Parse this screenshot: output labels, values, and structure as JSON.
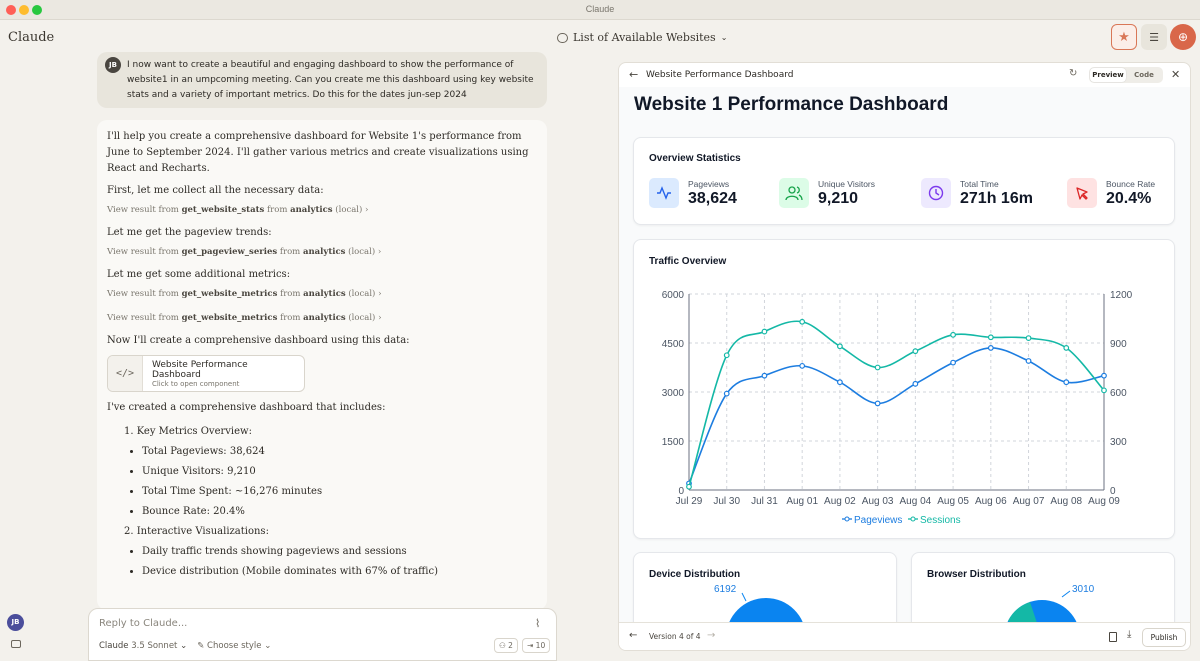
{
  "window": {
    "title": "Claude"
  },
  "header": {
    "app_name": "Claude",
    "conversation_title": "List of Available Websites"
  },
  "user_message": {
    "avatar": "JB",
    "text": "I now want to create a beautiful and engaging dashboard to show the performance of website1 in an umpcoming meeting. Can you create me this dashboard using key website stats and a variety of important metrics. Do this for the dates jun-sep 2024"
  },
  "assistant": {
    "intro": "I'll help you create a comprehensive dashboard for Website 1's performance from June to September 2024. I'll gather various metrics and create visualizations using React and Recharts.",
    "step1": "First, let me collect all the necessary data:",
    "tool1": {
      "prefix": "View result from",
      "tool": "get_website_stats",
      "from": "from",
      "server": "analytics",
      "suffix": "(local)"
    },
    "step2": "Let me get the pageview trends:",
    "tool2": {
      "prefix": "View result from",
      "tool": "get_pageview_series",
      "from": "from",
      "server": "analytics",
      "suffix": "(local)"
    },
    "step3": "Let me get some additional metrics:",
    "tool3": {
      "prefix": "View result from",
      "tool": "get_website_metrics",
      "from": "from",
      "server": "analytics",
      "suffix": "(local)"
    },
    "tool4": {
      "prefix": "View result from",
      "tool": "get_website_metrics",
      "from": "from",
      "server": "analytics",
      "suffix": "(local)"
    },
    "step4": "Now I'll create a comprehensive dashboard using this data:",
    "artifact": {
      "title": "Website Performance Dashboard",
      "subtitle": "Click to open component",
      "icon": "</>"
    },
    "summary": "I've created a comprehensive dashboard that includes:",
    "list1_title": "1. Key Metrics Overview:",
    "list1": [
      "Total Pageviews: 38,624",
      "Unique Visitors: 9,210",
      "Total Time Spent: ~16,276 minutes",
      "Bounce Rate: 20.4%"
    ],
    "list2_title": "2. Interactive Visualizations:",
    "list2": [
      "Daily traffic trends showing pageviews and sessions",
      "Device distribution (Mobile dominates with 67% of traffic)"
    ]
  },
  "composer": {
    "placeholder": "Reply to Claude...",
    "model": "Claude",
    "model_version": "3.5 Sonnet",
    "style": "Choose style",
    "count_a": "2",
    "count_b": "10"
  },
  "sidebar": {
    "avatar": "JB"
  },
  "artifact_panel": {
    "title": "Website Performance Dashboard",
    "toggle": {
      "preview": "Preview",
      "code": "Code"
    },
    "version": "Version 4 of 4",
    "publish": "Publish",
    "dashboard": {
      "title": "Website 1 Performance Dashboard",
      "overview_title": "Overview Statistics",
      "stats": [
        {
          "label": "Pageviews",
          "value": "38,624",
          "icon": "activity-icon",
          "color": "#2563eb",
          "bg": "#dbeafe"
        },
        {
          "label": "Unique Visitors",
          "value": "9,210",
          "icon": "users-icon",
          "color": "#16a34a",
          "bg": "#dcfce7"
        },
        {
          "label": "Total Time",
          "value": "271h 16m",
          "icon": "clock-icon",
          "color": "#7c3aed",
          "bg": "#ede9fe"
        },
        {
          "label": "Bounce Rate",
          "value": "20.4%",
          "icon": "pointer-icon",
          "color": "#dc2626",
          "bg": "#fee2e2"
        }
      ],
      "traffic_title": "Traffic Overview",
      "device_title": "Device Distribution",
      "device_label": "6192",
      "browser_title": "Browser Distribution",
      "browser_label": "3010"
    }
  },
  "chart_data": {
    "type": "line",
    "title": "Traffic Overview",
    "x": [
      "Jul 29",
      "Jul 30",
      "Jul 31",
      "Aug 01",
      "Aug 02",
      "Aug 03",
      "Aug 04",
      "Aug 05",
      "Aug 06",
      "Aug 07",
      "Aug 08",
      "Aug 09"
    ],
    "left_axis": {
      "ylim": [
        0,
        6000
      ],
      "ticks": [
        "0",
        "1500",
        "3000",
        "4500",
        "6000"
      ]
    },
    "right_axis": {
      "ylim": [
        0,
        1200
      ],
      "ticks": [
        "0",
        "300",
        "600",
        "900",
        "1200"
      ]
    },
    "grid": true,
    "legend": "bottom",
    "series": [
      {
        "name": "Pageviews",
        "axis": "left",
        "color": "#1d7de0",
        "values": [
          200,
          2950,
          3500,
          3800,
          3300,
          2650,
          3250,
          3900,
          4350,
          3950,
          3300,
          3500
        ]
      },
      {
        "name": "Sessions",
        "axis": "right",
        "color": "#14b8a6",
        "values": [
          20,
          825,
          970,
          1030,
          880,
          750,
          850,
          950,
          935,
          930,
          870,
          610
        ]
      }
    ]
  }
}
